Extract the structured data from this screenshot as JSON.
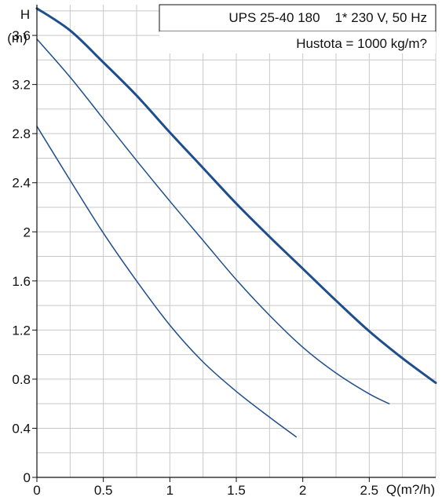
{
  "chart_data": {
    "type": "line",
    "title": "UPS 25-40 180    1* 230 V, 50 Hz",
    "subtitle": "Hustota = 1000 kg/m?",
    "ylabel_line1": "H",
    "ylabel_line2": "(m)",
    "xlabel": "Q(m?/h)",
    "xlim": [
      0,
      3.0
    ],
    "ylim": [
      0,
      3.85
    ],
    "x_ticks": [
      0,
      0.5,
      1,
      1.5,
      2,
      2.5
    ],
    "x_tick_labels": [
      "0",
      "0.5",
      "1",
      "1.5",
      "2",
      "2.5"
    ],
    "y_ticks": [
      0,
      0.4,
      0.8,
      1.2,
      1.6,
      2,
      2.4,
      2.8,
      3.2,
      3.6
    ],
    "y_tick_labels": [
      "0",
      "0.4",
      "0.8",
      "1.2",
      "1.6",
      "2",
      "2.4",
      "2.8",
      "3.2",
      "3.6"
    ],
    "grid": true,
    "colors": {
      "curve": "#1f4e8c",
      "grid": "#c8c8c8",
      "axis": "#111111"
    },
    "series": [
      {
        "speed": 1,
        "width": "thin",
        "x": [
          0,
          0.25,
          0.5,
          0.75,
          1.0,
          1.25,
          1.5,
          1.75,
          1.95
        ],
        "y": [
          2.86,
          2.42,
          1.99,
          1.6,
          1.24,
          0.94,
          0.7,
          0.49,
          0.33
        ]
      },
      {
        "speed": 2,
        "width": "thin",
        "x": [
          0,
          0.25,
          0.5,
          0.75,
          1.0,
          1.25,
          1.5,
          1.75,
          2.0,
          2.25,
          2.5,
          2.65
        ],
        "y": [
          3.57,
          3.26,
          2.92,
          2.58,
          2.25,
          1.93,
          1.61,
          1.32,
          1.06,
          0.85,
          0.68,
          0.6
        ]
      },
      {
        "speed": 3,
        "width": "thick",
        "x": [
          0,
          0.25,
          0.5,
          0.75,
          1.0,
          1.25,
          1.5,
          1.75,
          2.0,
          2.25,
          2.5,
          2.75,
          3.0
        ],
        "y": [
          3.82,
          3.64,
          3.38,
          3.11,
          2.81,
          2.52,
          2.23,
          1.96,
          1.7,
          1.44,
          1.19,
          0.97,
          0.77
        ]
      }
    ]
  }
}
